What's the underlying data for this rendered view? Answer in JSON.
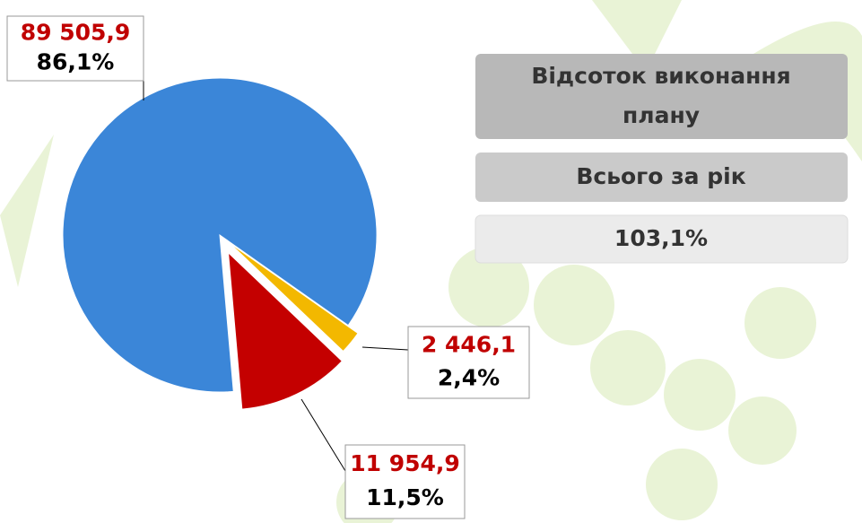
{
  "chart_data": {
    "type": "pie",
    "values": [
      89505.9,
      2446.1,
      11954.9
    ],
    "value_labels": [
      "89 505,9",
      "2 446,1",
      "11 954,9"
    ],
    "percents": [
      86.1,
      2.4,
      11.5
    ],
    "percent_labels": [
      "86,1%",
      "2,4%",
      "11,5%"
    ],
    "colors": [
      "#3b86d8",
      "#f3b800",
      "#c40000"
    ]
  },
  "panel": {
    "title": "Відсоток виконання плану",
    "period": "Всього за рік",
    "value": 103.1,
    "value_label": "103,1%"
  }
}
